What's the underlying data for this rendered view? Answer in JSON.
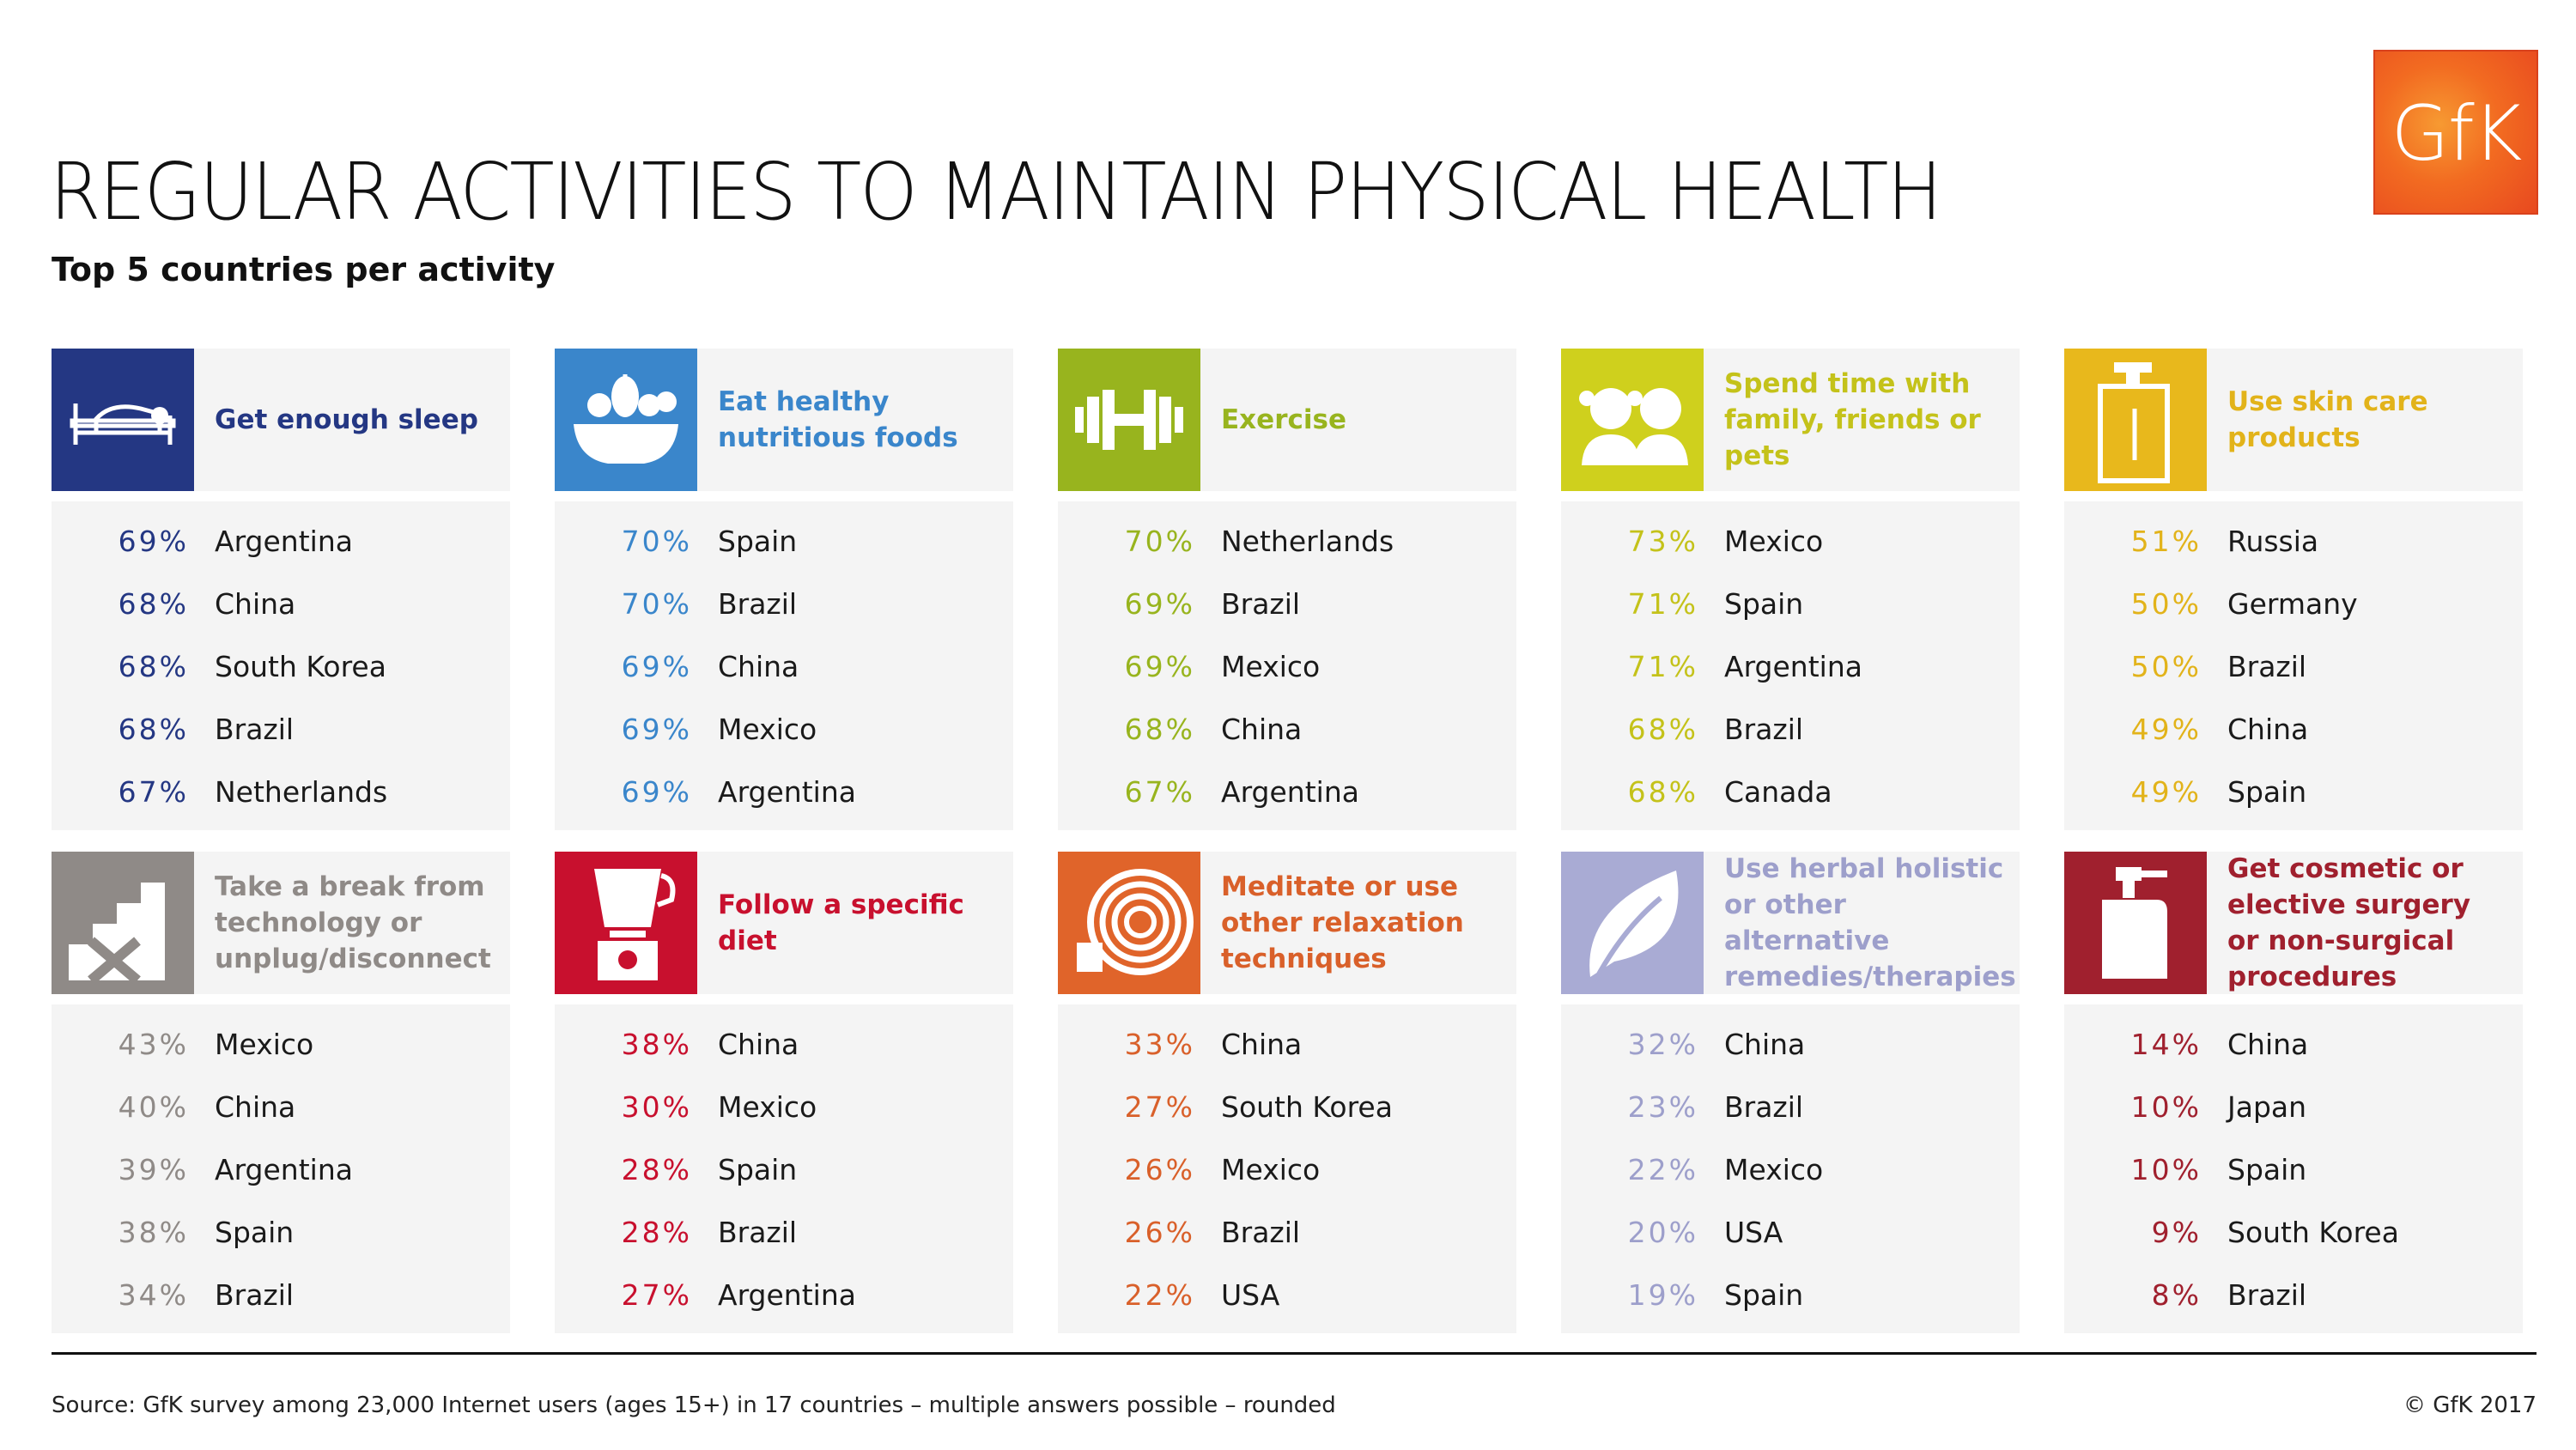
{
  "title": "REGULAR ACTIVITIES TO MAINTAIN PHYSICAL HEALTH",
  "subtitle": "Top 5 countries per activity",
  "logo_text": "GfK",
  "source": "Source: GfK survey among 23,000 Internet users (ages 15+) in 17 countries – multiple answers possible – rounded",
  "copyright": "© GfK 2017",
  "chart_data": {
    "type": "table",
    "title": "REGULAR ACTIVITIES TO MAINTAIN PHYSICAL HEALTH",
    "subtitle": "Top 5 countries per activity",
    "activities": [
      {
        "label": "Get enough sleep",
        "color": "#243783",
        "label_color": "#243783",
        "icon": "bed-icon",
        "rows": [
          {
            "pct": "69%",
            "country": "Argentina"
          },
          {
            "pct": "68%",
            "country": "China"
          },
          {
            "pct": "68%",
            "country": "South Korea"
          },
          {
            "pct": "68%",
            "country": "Brazil"
          },
          {
            "pct": "67%",
            "country": "Netherlands"
          }
        ]
      },
      {
        "label": "Eat healthy nutritious foods",
        "color": "#3a86cb",
        "label_color": "#3a86cb",
        "icon": "food-bowl-icon",
        "rows": [
          {
            "pct": "70%",
            "country": "Spain"
          },
          {
            "pct": "70%",
            "country": "Brazil"
          },
          {
            "pct": "69%",
            "country": "China"
          },
          {
            "pct": "69%",
            "country": "Mexico"
          },
          {
            "pct": "69%",
            "country": "Argentina"
          }
        ]
      },
      {
        "label": "Exercise",
        "color": "#98b41e",
        "label_color": "#98b41e",
        "icon": "dumbbell-icon",
        "rows": [
          {
            "pct": "70%",
            "country": "Netherlands"
          },
          {
            "pct": "69%",
            "country": "Brazil"
          },
          {
            "pct": "69%",
            "country": "Mexico"
          },
          {
            "pct": "68%",
            "country": "China"
          },
          {
            "pct": "67%",
            "country": "Argentina"
          }
        ]
      },
      {
        "label": "Spend time with family, friends or pets",
        "color": "#cfd01d",
        "label_color": "#c4c21a",
        "icon": "people-icon",
        "rows": [
          {
            "pct": "73%",
            "country": "Mexico"
          },
          {
            "pct": "71%",
            "country": "Spain"
          },
          {
            "pct": "71%",
            "country": "Argentina"
          },
          {
            "pct": "68%",
            "country": "Brazil"
          },
          {
            "pct": "68%",
            "country": "Canada"
          }
        ]
      },
      {
        "label": "Use skin care products",
        "color": "#e8b81c",
        "label_color": "#e2b31a",
        "icon": "lotion-bottle-icon",
        "rows": [
          {
            "pct": "51%",
            "country": "Russia"
          },
          {
            "pct": "50%",
            "country": "Germany"
          },
          {
            "pct": "50%",
            "country": "Brazil"
          },
          {
            "pct": "49%",
            "country": "China"
          },
          {
            "pct": "49%",
            "country": "Spain"
          }
        ]
      },
      {
        "label": "Take a break from technology or unplug/disconnect",
        "color": "#8f8a87",
        "label_color": "#8f8a87",
        "icon": "unplug-icon",
        "rows": [
          {
            "pct": "43%",
            "country": "Mexico"
          },
          {
            "pct": "40%",
            "country": "China"
          },
          {
            "pct": "39%",
            "country": "Argentina"
          },
          {
            "pct": "38%",
            "country": "Spain"
          },
          {
            "pct": "34%",
            "country": "Brazil"
          }
        ]
      },
      {
        "label": "Follow a specific diet",
        "color": "#c8102e",
        "label_color": "#c8102e",
        "icon": "blender-icon",
        "rows": [
          {
            "pct": "38%",
            "country": "China"
          },
          {
            "pct": "30%",
            "country": "Mexico"
          },
          {
            "pct": "28%",
            "country": "Spain"
          },
          {
            "pct": "28%",
            "country": "Brazil"
          },
          {
            "pct": "27%",
            "country": "Argentina"
          }
        ]
      },
      {
        "label": "Meditate or use other relaxation techniques",
        "color": "#e0642a",
        "label_color": "#d9602a",
        "icon": "spiral-icon",
        "rows": [
          {
            "pct": "33%",
            "country": "China"
          },
          {
            "pct": "27%",
            "country": "South Korea"
          },
          {
            "pct": "26%",
            "country": "Mexico"
          },
          {
            "pct": "26%",
            "country": "Brazil"
          },
          {
            "pct": "22%",
            "country": "USA"
          }
        ]
      },
      {
        "label": "Use herbal holistic or other alternative remedies/therapies",
        "color": "#a9abd4",
        "label_color": "#9d9fcb",
        "icon": "leaf-icon",
        "rows": [
          {
            "pct": "32%",
            "country": "China"
          },
          {
            "pct": "23%",
            "country": "Brazil"
          },
          {
            "pct": "22%",
            "country": "Mexico"
          },
          {
            "pct": "20%",
            "country": "USA"
          },
          {
            "pct": "19%",
            "country": "Spain"
          }
        ]
      },
      {
        "label": "Get cosmetic or elective surgery or non-surgical procedures",
        "color": "#a0202e",
        "label_color": "#a0202e",
        "icon": "pump-bottle-icon",
        "rows": [
          {
            "pct": "14%",
            "country": "China"
          },
          {
            "pct": "10%",
            "country": "Japan"
          },
          {
            "pct": "10%",
            "country": "Spain"
          },
          {
            "pct": "9%",
            "country": "South Korea"
          },
          {
            "pct": "8%",
            "country": "Brazil"
          }
        ]
      }
    ]
  }
}
